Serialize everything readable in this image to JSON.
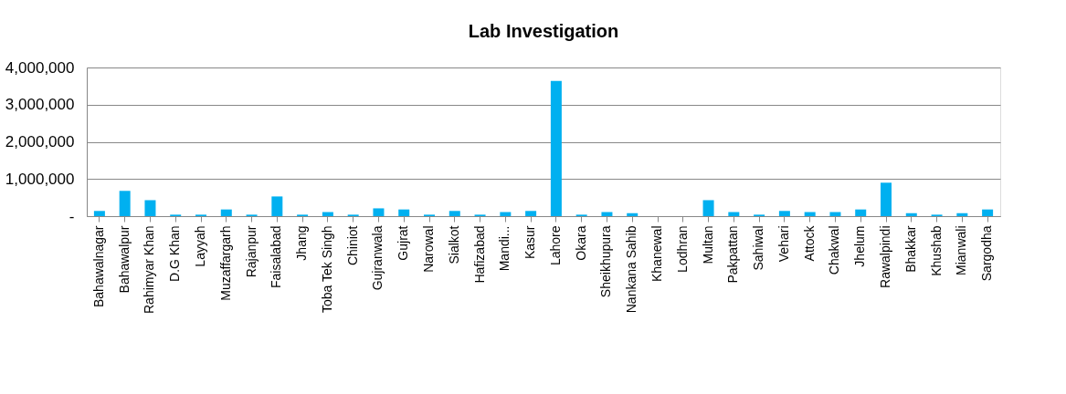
{
  "chart_data": {
    "type": "bar",
    "title": "Lab Investigation",
    "categories": [
      "Bahawalnagar",
      "Bahawalpur",
      "Rahimyar Khan",
      "D.G Khan",
      "Layyah",
      "Muzaffargarh",
      "Rajanpur",
      "Faisalabad",
      "Jhang",
      "Toba Tek Singh",
      "Chiniot",
      "Gujranwala",
      "Gujrat",
      "Narowal",
      "Sialkot",
      "Hafizabad",
      "Mandi...",
      "Kasur",
      "Lahore",
      "Okara",
      "Sheikhupura",
      "Nankana Sahib",
      "Khanewal",
      "Lodhran",
      "Multan",
      "Pakpattan",
      "Sahiwal",
      "Vehari",
      "Attock",
      "Chakwal",
      "Jhelum",
      "Rawalpindi",
      "Bhakkar",
      "Khushab",
      "Mianwali",
      "Sargodha"
    ],
    "values": [
      140000,
      680000,
      430000,
      40000,
      40000,
      180000,
      40000,
      530000,
      40000,
      110000,
      40000,
      210000,
      180000,
      40000,
      140000,
      40000,
      110000,
      140000,
      3640000,
      40000,
      110000,
      80000,
      0,
      0,
      430000,
      110000,
      40000,
      140000,
      110000,
      110000,
      180000,
      900000,
      80000,
      40000,
      80000,
      180000
    ],
    "color": "#00b0f0",
    "ylim": [
      0,
      4000000
    ],
    "yticks": [
      {
        "value": 0,
        "label": "-"
      },
      {
        "value": 1000000,
        "label": "1,000,000"
      },
      {
        "value": 2000000,
        "label": "2,000,000"
      },
      {
        "value": 3000000,
        "label": "3,000,000"
      },
      {
        "value": 4000000,
        "label": "4,000,000"
      }
    ],
    "grid": "y"
  }
}
